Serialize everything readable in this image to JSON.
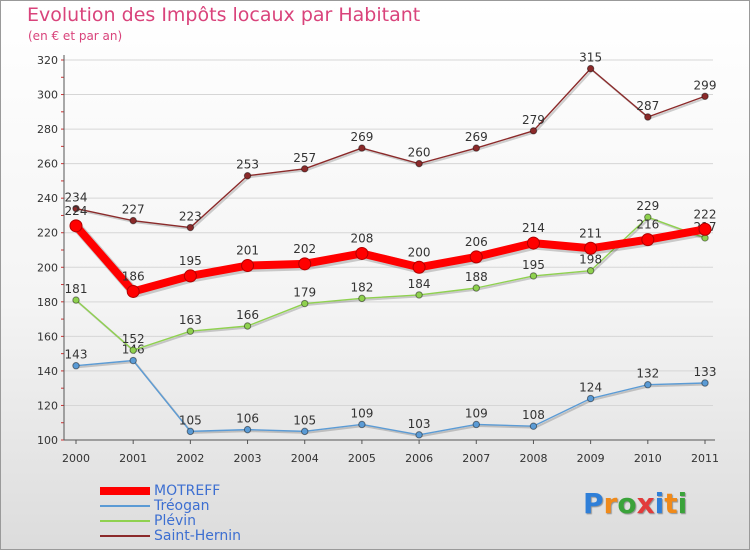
{
  "title": "Evolution des Impôts locaux par Habitant",
  "subtitle": "(en € et par an)",
  "logo": {
    "text": "Proxiti",
    "letter_colors": [
      "#2f7fd8",
      "#f08a1a",
      "#3aa33a",
      "#e23b3b",
      "#2f7fd8",
      "#f08a1a",
      "#3aa33a"
    ]
  },
  "chart_data": {
    "type": "line",
    "x": [
      "2000",
      "2001",
      "2002",
      "2003",
      "2004",
      "2005",
      "2006",
      "2007",
      "2008",
      "2009",
      "2010",
      "2011"
    ],
    "ylim": [
      100,
      320
    ],
    "yticks": [
      100,
      120,
      140,
      160,
      180,
      200,
      220,
      240,
      260,
      280,
      300,
      320
    ],
    "grid": "horizontal",
    "legend_placement": "bottom-left",
    "series": [
      {
        "name": "MOTREFF",
        "color": "#ff0000",
        "values": [
          224,
          186,
          195,
          201,
          202,
          208,
          200,
          206,
          214,
          211,
          216,
          222
        ],
        "labels": [
          "224",
          "186",
          "195",
          "201",
          "202",
          "208",
          "200",
          "206",
          "214",
          "211",
          "216",
          "222"
        ]
      },
      {
        "name": "Tréogan",
        "color": "#5b9bd5",
        "values": [
          143,
          146,
          105,
          106,
          105,
          109,
          103,
          109,
          108,
          124,
          132,
          133
        ],
        "labels": [
          "143",
          "146",
          "105",
          "106",
          "105",
          "109",
          "103",
          "109",
          "108",
          "124",
          "132",
          "133"
        ]
      },
      {
        "name": "Plévin",
        "color": "#8fd14f",
        "values": [
          181,
          152,
          163,
          166,
          179,
          182,
          184,
          188,
          195,
          198,
          229,
          217
        ],
        "labels": [
          "181",
          "152",
          "163",
          "166",
          "179",
          "182",
          "184",
          "188",
          "195",
          "198",
          "229",
          "217"
        ]
      },
      {
        "name": "Saint-Hernin",
        "color": "#8b2a2a",
        "values": [
          234,
          227,
          223,
          253,
          257,
          269,
          260,
          269,
          279,
          315,
          287,
          299
        ],
        "labels": [
          "234",
          "227",
          "223",
          "253",
          "257",
          "269",
          "260",
          "269",
          "279",
          "315",
          "287",
          "299"
        ]
      }
    ]
  }
}
